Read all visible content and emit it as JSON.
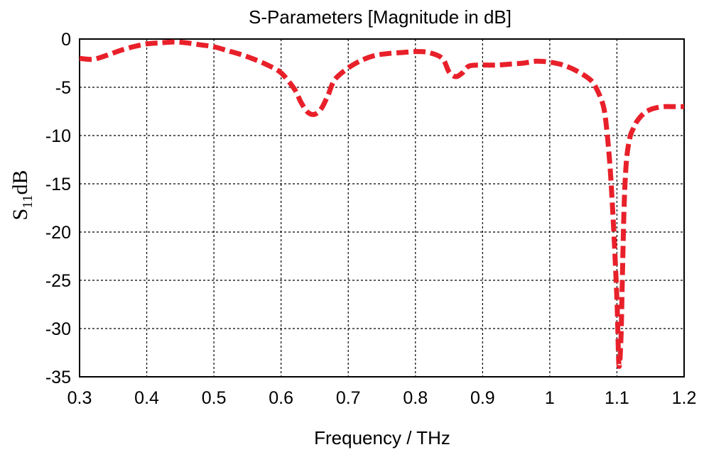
{
  "chart_data": {
    "type": "line",
    "title": "S-Parameters [Magnitude in dB]",
    "xlabel": "Frequency / THz",
    "ylabel": {
      "base": "S",
      "subscript": "11",
      "suffix": "dB"
    },
    "xlim": [
      0.3,
      1.2
    ],
    "ylim": [
      -35,
      0
    ],
    "x_ticks": [
      "0.3",
      "0.4",
      "0.5",
      "0.6",
      "0.7",
      "0.8",
      "0.9",
      "1",
      "1.1",
      "1.2"
    ],
    "y_ticks": [
      "0",
      "-5",
      "-10",
      "-15",
      "-20",
      "-25",
      "-30",
      "-35"
    ],
    "grid": true,
    "series": [
      {
        "color": "#e8202a",
        "line_style": "dashed",
        "x": [
          0.3,
          0.32,
          0.34,
          0.36,
          0.38,
          0.4,
          0.42,
          0.44,
          0.46,
          0.48,
          0.5,
          0.52,
          0.54,
          0.56,
          0.58,
          0.6,
          0.62,
          0.63,
          0.64,
          0.65,
          0.66,
          0.67,
          0.68,
          0.7,
          0.72,
          0.74,
          0.76,
          0.78,
          0.8,
          0.82,
          0.84,
          0.85,
          0.86,
          0.87,
          0.88,
          0.9,
          0.92,
          0.94,
          0.96,
          0.98,
          1.0,
          1.02,
          1.04,
          1.06,
          1.07,
          1.08,
          1.085,
          1.09,
          1.095,
          1.1,
          1.103,
          1.106,
          1.108,
          1.11,
          1.112,
          1.115,
          1.12,
          1.125,
          1.13,
          1.14,
          1.15,
          1.16,
          1.17,
          1.18,
          1.19,
          1.2
        ],
        "y": [
          -2.0,
          -2.1,
          -1.7,
          -1.2,
          -0.8,
          -0.5,
          -0.4,
          -0.3,
          -0.4,
          -0.6,
          -0.8,
          -1.2,
          -1.6,
          -2.1,
          -2.7,
          -3.5,
          -5.2,
          -6.6,
          -7.6,
          -7.8,
          -7.2,
          -5.8,
          -4.2,
          -3.0,
          -2.2,
          -1.7,
          -1.5,
          -1.4,
          -1.3,
          -1.4,
          -2.0,
          -3.4,
          -3.9,
          -3.5,
          -2.8,
          -2.7,
          -2.7,
          -2.6,
          -2.5,
          -2.3,
          -2.4,
          -2.7,
          -3.3,
          -4.2,
          -5.2,
          -7.0,
          -9.5,
          -13.5,
          -19.5,
          -27.0,
          -33.8,
          -31.0,
          -25.0,
          -19.0,
          -15.0,
          -12.0,
          -10.0,
          -9.2,
          -8.5,
          -7.7,
          -7.3,
          -7.1,
          -7.0,
          -7.0,
          -7.0,
          -7.0
        ]
      }
    ]
  }
}
